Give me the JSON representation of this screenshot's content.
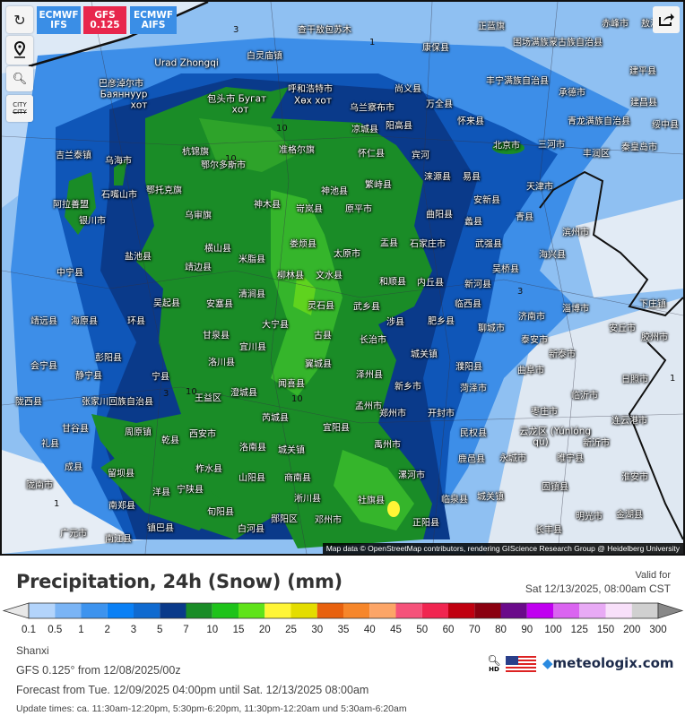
{
  "toolbar": {
    "reload_icon": "reload-icon",
    "location_icon": "map-pin-icon",
    "zoom_icon": "zoom-out-icon",
    "city_label": "CITY",
    "share_icon": "share-icon"
  },
  "models": [
    {
      "line1": "ECMWF",
      "line2": "IFS",
      "color": "#3a8ee6",
      "active": false
    },
    {
      "line1": "GFS",
      "line2": "0.125",
      "color": "#e8264c",
      "active": true
    },
    {
      "line1": "ECMWF",
      "line2": "AIFS",
      "color": "#3a8ee6",
      "active": false
    }
  ],
  "map": {
    "attribution": "Map data © OpenStreetMap contributors, rendering GIScience Research Group @ Heidelberg University",
    "cities": [
      "查干敖包苏木",
      "白灵庙镇",
      "Urad Zhongqi",
      "巴彦淖尔市",
      "Баяннуур",
      "хот",
      "包头市 Бугат",
      "хот",
      "呼和浩特市",
      "Хөх хот",
      "乌兰察布市",
      "凉城县",
      "阳高县",
      "尚义县",
      "万全县",
      "康保县",
      "正蓝旗",
      "围场满族蒙古族自治县",
      "赤峰市",
      "敖汉",
      "建平县",
      "建昌县",
      "丰宁满族自治县",
      "承德市",
      "青龙满族自治县",
      "绥中县",
      "北京市",
      "三河市",
      "丰润区",
      "秦皇岛市",
      "怀来县",
      "怀仁县",
      "宾河",
      "涞源县",
      "易县",
      "杭锦旗",
      "鄂尔多斯市",
      "准格尔旗",
      "乌海市",
      "吉兰泰镇",
      "石嘴山市",
      "阿拉善盟",
      "鄂托克旗",
      "银川市",
      "神池县",
      "繁峙县",
      "神木县",
      "岢岚县",
      "原平市",
      "曲阳县",
      "蠡县",
      "安新县",
      "天津市",
      "青县",
      "乌审旗",
      "盐池县",
      "横山县",
      "靖边县",
      "米脂县",
      "娄烦县",
      "太原市",
      "盂县",
      "石家庄市",
      "武强县",
      "海兴县",
      "柳林县",
      "文水县",
      "和顺县",
      "内丘县",
      "新河县",
      "吴桥县",
      "滨州市",
      "中宁县",
      "吴起县",
      "安塞县",
      "清涧县",
      "灵石县",
      "武乡县",
      "涉县",
      "肥乡县",
      "临西县",
      "聊城市",
      "淄博市",
      "下庄镇",
      "济南市",
      "泰安市",
      "新泰市",
      "安丘市",
      "胶州市",
      "曲阜市",
      "日照市",
      "临沂市",
      "枣庄市",
      "云龙区 (Yúnlóng",
      "qū)",
      "连云港市",
      "新沂市",
      "睢宁县",
      "淮安市",
      "金湖县",
      "明光市",
      "长丰县",
      "固镇县",
      "永城市",
      "城关镇",
      "临泉县",
      "鹿邑县",
      "民权县",
      "菏泽市",
      "濮阳县",
      "城关镇",
      "开封市",
      "郑州市",
      "新乡市",
      "泽州县",
      "孟州市",
      "宜阳县",
      "禹州市",
      "漯河市",
      "正阳县",
      "社旗县",
      "邓州市",
      "淅川县",
      "商南县",
      "山阳县",
      "城关镇",
      "洛南县",
      "西安市",
      "乾县",
      "周原镇",
      "柞水县",
      "宁陕县",
      "洋县",
      "旬阳县",
      "郧阳区",
      "白河县",
      "镇巴县",
      "南江县",
      "广元市",
      "南郑县",
      "留坝县",
      "芮城县",
      "澄城县",
      "王益区",
      "闻喜县",
      "翼城县",
      "古县",
      "长治市",
      "大宁县",
      "宜川县",
      "洛川县",
      "甘泉县",
      "宁县",
      "环县",
      "海原县",
      "靖远县",
      "会宁县",
      "静宁县",
      "彭阳县",
      "张家川回族自治县",
      "陇西县",
      "甘谷县",
      "礼县",
      "成县",
      "陇南市"
    ],
    "contours": [
      "1",
      "3",
      "10",
      "10",
      "10",
      "10",
      "3",
      "1",
      "3",
      "1"
    ]
  },
  "panel": {
    "title": "Precipitation, 24h (Snow) (mm)",
    "valid_label": "Valid for",
    "valid_time": "Sat 12/13/2025, 08:00am CST",
    "region": "Shanxi",
    "model_run": "GFS 0.125° from 12/08/2025/00z",
    "forecast_range": "Forecast from Tue. 12/09/2025 04:00pm until Sat. 12/13/2025 08:00am",
    "update_times": "Update times: ca. 11:30am-12:20pm, 5:30pm-6:20pm, 11:30pm-12:20am und 5:30am-6:20am",
    "hd_label": "HD",
    "logo": "meteologix.com"
  },
  "legend": {
    "ticks": [
      "0.1",
      "0.5",
      "1",
      "2",
      "3",
      "5",
      "7",
      "10",
      "15",
      "20",
      "25",
      "30",
      "35",
      "40",
      "45",
      "50",
      "60",
      "70",
      "80",
      "90",
      "100",
      "125",
      "150",
      "200",
      "300"
    ],
    "colors": [
      "#b3d4fb",
      "#7ab4f5",
      "#3d93ee",
      "#0a80f5",
      "#0f6ad0",
      "#0a3a8a",
      "#1a8c27",
      "#1ec31a",
      "#5fe31a",
      "#fff536",
      "#e4dd00",
      "#e8610e",
      "#f6862a",
      "#fca567",
      "#f5527a",
      "#f02550",
      "#c00010",
      "#8a0010",
      "#6a0a8a",
      "#c000f0",
      "#da64f0",
      "#e8aaf5",
      "#f8e0fa",
      "#d0d0d0"
    ],
    "under_color": "#e8e8e8",
    "over_color": "#888888"
  }
}
